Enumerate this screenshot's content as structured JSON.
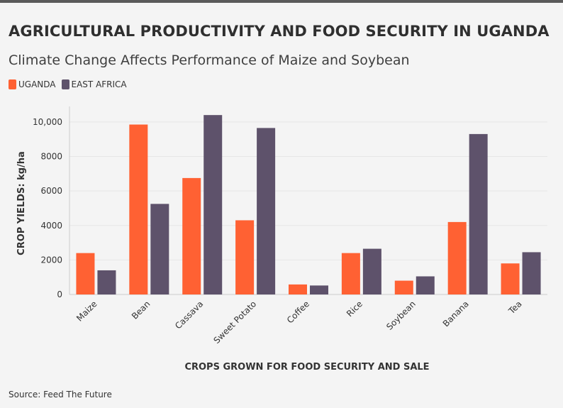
{
  "title": "AGRICULTURAL PRODUCTIVITY AND FOOD SECURITY IN UGANDA",
  "subtitle": "Climate Change Affects Performance of Maize and Soybean",
  "source": "Source: Feed The Future",
  "colors": {
    "uganda": "#ff6133",
    "east_africa": "#5e526b",
    "grid": "#e6e6e6",
    "axis": "#cccccc"
  },
  "chart_data": {
    "type": "bar",
    "title": "AGRICULTURAL PRODUCTIVITY AND FOOD SECURITY IN UGANDA",
    "subtitle": "Climate Change Affects Performance of Maize and Soybean",
    "xlabel": "CROPS GROWN FOR FOOD SECURITY AND SALE",
    "ylabel": "CROP YIELDS: kg/ha",
    "categories": [
      "Maize",
      "Bean",
      "Cassava",
      "Sweet Potato",
      "Coffee",
      "Rice",
      "Soybean",
      "Banana",
      "Tea"
    ],
    "series": [
      {
        "name": "UGANDA",
        "color": "#ff6133",
        "values": [
          2400,
          9850,
          6750,
          4300,
          580,
          2400,
          800,
          4200,
          1800
        ]
      },
      {
        "name": "EAST AFRICA",
        "color": "#5e526b",
        "values": [
          1400,
          5250,
          10400,
          9650,
          520,
          2650,
          1050,
          9300,
          2450
        ]
      }
    ],
    "yticks": [
      0,
      2000,
      4000,
      6000,
      8000,
      10000
    ],
    "ytick_labels": [
      "0",
      "2000",
      "4000",
      "6000",
      "8000",
      "10,000"
    ],
    "ylim": [
      0,
      10900
    ],
    "grid": true,
    "legend": "top-left"
  }
}
